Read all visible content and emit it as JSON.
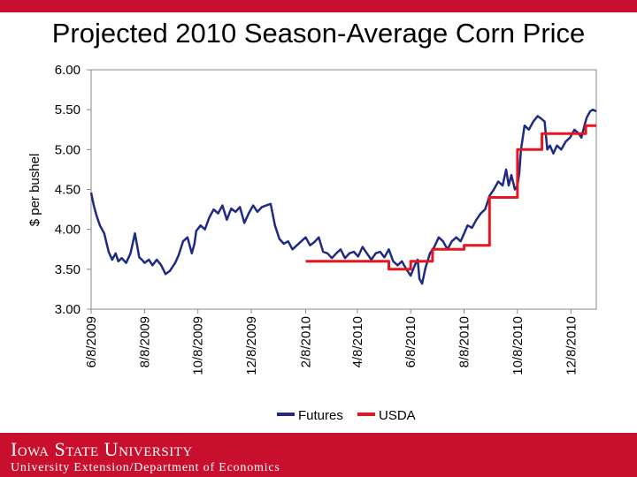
{
  "slide": {
    "title": "Projected 2010 Season-Average Corn Price"
  },
  "footer": {
    "logo_text": "Iowa State University",
    "subtitle": "University Extension/Department of Economics"
  },
  "colors": {
    "accent": "#c8102e",
    "futures": "#1f2a80",
    "usda": "#e8141e",
    "axis": "#888888"
  },
  "chart_data": {
    "type": "line",
    "title": "Projected 2010 Season-Average Corn Price",
    "xlabel": "",
    "ylabel": "$ per bushel",
    "ylim": [
      3.0,
      6.0
    ],
    "yticks": [
      "3.00",
      "3.50",
      "4.00",
      "4.50",
      "5.00",
      "5.50",
      "6.00"
    ],
    "ytick_values": [
      3.0,
      3.5,
      4.0,
      4.5,
      5.0,
      5.5,
      6.0
    ],
    "xlim_days": [
      0,
      577
    ],
    "xticks": [
      {
        "label": "6/8/2009",
        "day": 0
      },
      {
        "label": "8/8/2009",
        "day": 61
      },
      {
        "label": "10/8/2009",
        "day": 122
      },
      {
        "label": "12/8/2009",
        "day": 183
      },
      {
        "label": "2/8/2010",
        "day": 245
      },
      {
        "label": "4/8/2010",
        "day": 304
      },
      {
        "label": "6/8/2010",
        "day": 365
      },
      {
        "label": "8/8/2010",
        "day": 426
      },
      {
        "label": "10/8/2010",
        "day": 487
      },
      {
        "label": "12/8/2010",
        "day": 548
      }
    ],
    "legend": {
      "position": "bottom",
      "entries": [
        "Futures",
        "USDA"
      ]
    },
    "grid": false,
    "series": [
      {
        "name": "Futures",
        "x_days": [
          0,
          3,
          6,
          10,
          15,
          20,
          24,
          28,
          31,
          35,
          40,
          45,
          50,
          55,
          58,
          61,
          66,
          70,
          75,
          80,
          85,
          90,
          96,
          100,
          105,
          110,
          115,
          118,
          120,
          125,
          130,
          135,
          140,
          145,
          150,
          155,
          160,
          165,
          170,
          175,
          180,
          185,
          190,
          195,
          200,
          205,
          210,
          215,
          220,
          225,
          230,
          235,
          240,
          245,
          250,
          255,
          260,
          265,
          270,
          275,
          280,
          285,
          290,
          295,
          300,
          305,
          310,
          315,
          320,
          325,
          330,
          335,
          340,
          345,
          350,
          355,
          360,
          365,
          370,
          373,
          375,
          378,
          382,
          387,
          392,
          397,
          402,
          407,
          412,
          417,
          422,
          426,
          430,
          435,
          440,
          445,
          450,
          455,
          460,
          465,
          470,
          474,
          477,
          480,
          484,
          487,
          489,
          491,
          495,
          500,
          505,
          510,
          515,
          518,
          521,
          524,
          528,
          532,
          537,
          542,
          547,
          552,
          557,
          560,
          563,
          566,
          570,
          573,
          577
        ],
        "values": [
          4.46,
          4.3,
          4.18,
          4.05,
          3.95,
          3.72,
          3.62,
          3.7,
          3.6,
          3.64,
          3.58,
          3.7,
          3.95,
          3.65,
          3.62,
          3.58,
          3.62,
          3.55,
          3.62,
          3.55,
          3.44,
          3.48,
          3.58,
          3.68,
          3.85,
          3.9,
          3.7,
          3.82,
          3.98,
          4.05,
          4.0,
          4.15,
          4.25,
          4.2,
          4.3,
          4.12,
          4.26,
          4.22,
          4.28,
          4.08,
          4.2,
          4.3,
          4.22,
          4.28,
          4.3,
          4.32,
          4.05,
          3.88,
          3.82,
          3.85,
          3.75,
          3.8,
          3.85,
          3.9,
          3.8,
          3.84,
          3.9,
          3.72,
          3.7,
          3.64,
          3.7,
          3.75,
          3.64,
          3.7,
          3.72,
          3.66,
          3.78,
          3.7,
          3.62,
          3.7,
          3.72,
          3.65,
          3.75,
          3.6,
          3.55,
          3.6,
          3.5,
          3.42,
          3.56,
          3.62,
          3.38,
          3.32,
          3.52,
          3.7,
          3.78,
          3.9,
          3.85,
          3.75,
          3.85,
          3.9,
          3.85,
          3.95,
          4.05,
          4.02,
          4.12,
          4.2,
          4.25,
          4.42,
          4.5,
          4.6,
          4.55,
          4.75,
          4.55,
          4.68,
          4.5,
          4.55,
          4.7,
          5.0,
          5.3,
          5.25,
          5.35,
          5.42,
          5.38,
          5.35,
          5.0,
          5.05,
          4.95,
          5.05,
          5.0,
          5.1,
          5.15,
          5.25,
          5.2,
          5.15,
          5.28,
          5.4,
          5.48,
          5.5,
          5.48
        ]
      },
      {
        "name": "USDA",
        "x_days": [
          245,
          340,
          340,
          365,
          365,
          390,
          390,
          426,
          426,
          455,
          455,
          487,
          487,
          515,
          515,
          565,
          565,
          577
        ],
        "values": [
          3.6,
          3.6,
          3.5,
          3.5,
          3.6,
          3.6,
          3.75,
          3.75,
          3.8,
          3.8,
          4.4,
          4.4,
          5.0,
          5.0,
          5.2,
          5.2,
          5.3,
          5.3
        ]
      }
    ]
  }
}
